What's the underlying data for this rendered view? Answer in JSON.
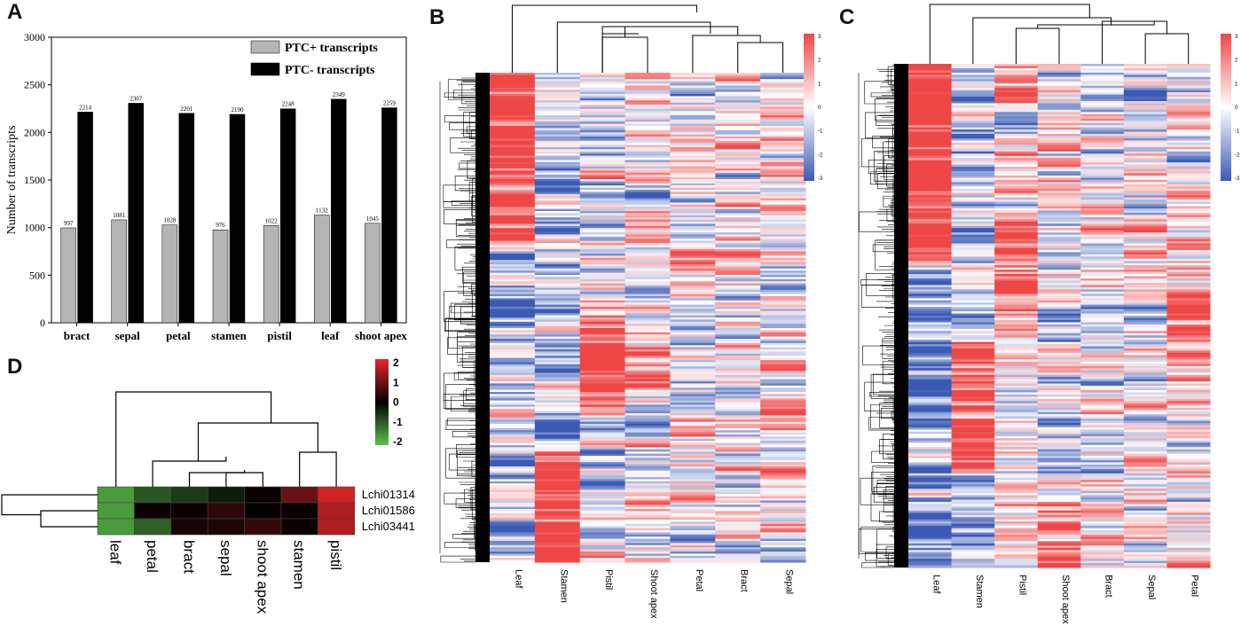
{
  "panels": {
    "a": "A",
    "b": "B",
    "c": "C",
    "d": "D"
  },
  "chart_data": [
    {
      "panel": "A",
      "type": "bar",
      "ylabel": "Number of transcripts",
      "ylim": [
        0,
        3000
      ],
      "yticks": [
        "0",
        "500",
        "1000",
        "1500",
        "2000",
        "2500",
        "3000"
      ],
      "categories": [
        "bract",
        "sepal",
        "petal",
        "stamen",
        "pistil",
        "leaf",
        "shoot apex"
      ],
      "series": [
        {
          "name": "PTC+ transcripts",
          "color": "#b4b4b4",
          "values": [
            997,
            1081,
            1028,
            976,
            1022,
            1132,
            1045
          ],
          "labels": [
            "997",
            "1081",
            "1028",
            "976",
            "1022",
            "1132",
            "1045"
          ]
        },
        {
          "name": "PTC- transcripts",
          "color": "#000000",
          "values": [
            2214,
            2307,
            2201,
            2190,
            2248,
            2349,
            2259
          ],
          "labels": [
            "2214",
            "2307",
            "2201",
            "2190",
            "2248",
            "2349",
            "2259"
          ]
        }
      ],
      "legend": "top-right"
    },
    {
      "panel": "B",
      "type": "heatmap",
      "columns": [
        "Leaf",
        "Stamen",
        "Pistil",
        "Shoot apex",
        "Petal",
        "Bract",
        "Sepal"
      ],
      "colorbar_ticks": [
        "3",
        "2",
        "1",
        "0",
        "-1",
        "-2",
        "-3"
      ],
      "color_low": "#3a5ab5",
      "color_mid": "#ffffff",
      "color_high": "#ef4646",
      "row_dendrogram": true
    },
    {
      "panel": "C",
      "type": "heatmap",
      "columns": [
        "Leaf",
        "Stamen",
        "Pistil",
        "Shoot apex",
        "Bract",
        "Sepal",
        "Petal"
      ],
      "colorbar_ticks": [
        "3",
        "2",
        "1",
        "0",
        "-1",
        "-2",
        "-3"
      ],
      "color_low": "#3a5ab5",
      "color_mid": "#ffffff",
      "color_high": "#ef4646",
      "row_dendrogram": true
    },
    {
      "panel": "D",
      "type": "heatmap",
      "columns": [
        "leaf",
        "petal",
        "bract",
        "sepal",
        "shoot apex",
        "stamen",
        "pistil"
      ],
      "rows": [
        "Lchi01314",
        "Lchi01586",
        "Lchi03441"
      ],
      "values": [
        [
          -1.6,
          -0.9,
          -0.6,
          -0.3,
          0.1,
          0.9,
          1.8
        ],
        [
          -1.6,
          0.1,
          0.1,
          0.4,
          0.05,
          0.1,
          1.5
        ],
        [
          -1.6,
          -1.0,
          0.2,
          0.25,
          0.45,
          0.1,
          1.5
        ]
      ],
      "colorbar_ticks": [
        "2",
        "1",
        "0",
        "-1",
        "-2"
      ],
      "color_low": "#5bc24a",
      "color_mid": "#000000",
      "color_high": "#e8262a"
    }
  ]
}
